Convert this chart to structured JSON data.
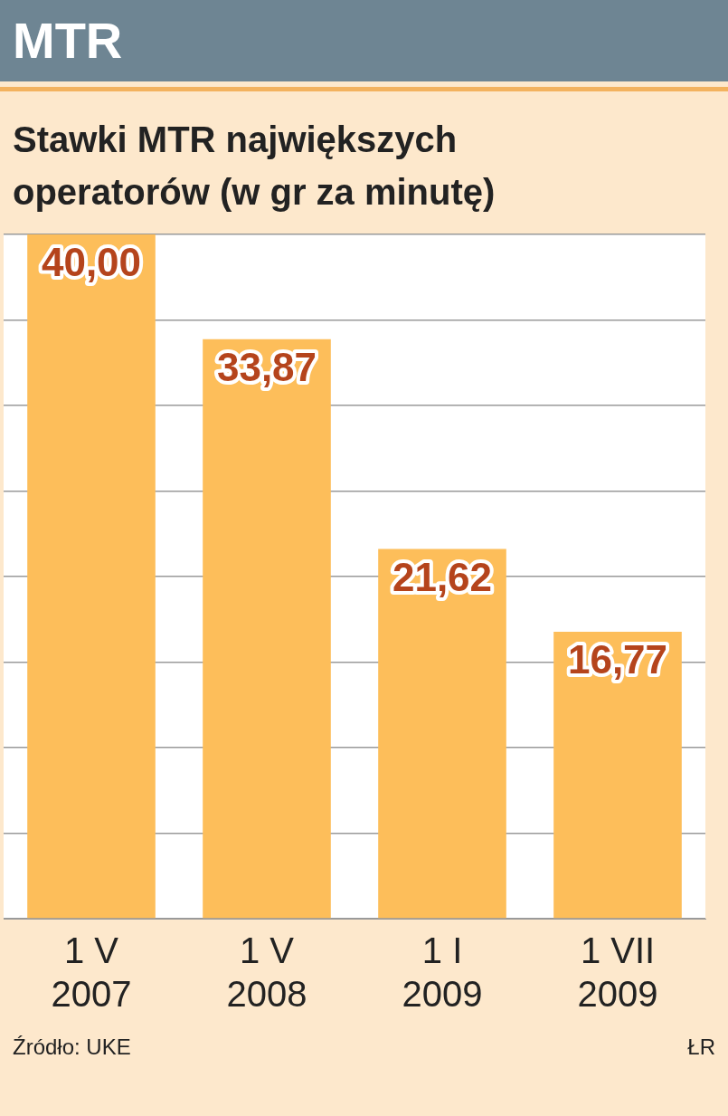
{
  "chart_data": {
    "type": "bar",
    "title": "MTR",
    "subtitle": "Stawki MTR największych operatorów (w gr za minutę)",
    "categories": [
      "1 V\n2007",
      "1 V\n2008",
      "1 I\n2009",
      "1 VII\n2009"
    ],
    "values": [
      40.0,
      33.87,
      21.62,
      16.77
    ],
    "value_labels": [
      "40,00",
      "33,87",
      "21,62",
      "16,77"
    ],
    "color": "#fdbe5a",
    "ylim": [
      0,
      40
    ],
    "yticks": [
      {
        "value": 0,
        "label": null
      },
      {
        "value": 5,
        "label": null
      },
      {
        "value": 10,
        "label": null
      },
      {
        "value": 15,
        "label": null
      },
      {
        "value": 20,
        "label": null
      },
      {
        "value": 25,
        "label": null
      },
      {
        "value": 30,
        "label": null
      },
      {
        "value": 35,
        "label": null
      },
      {
        "value": 40,
        "label": null
      }
    ],
    "tick_labels": "x",
    "grid": "y",
    "legend": false,
    "annotations": [
      "Źródło: UKE",
      "ŁR"
    ]
  }
}
